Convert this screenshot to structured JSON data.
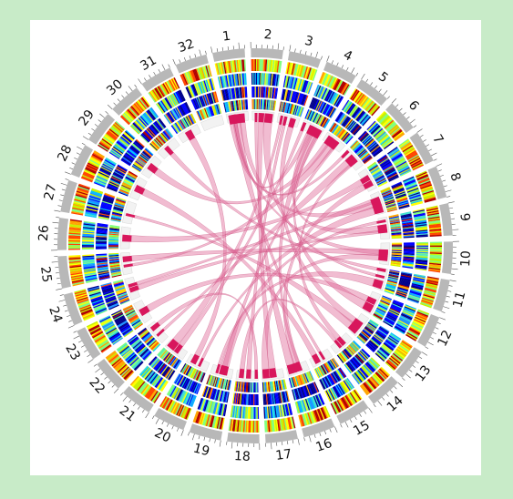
{
  "figure": {
    "background_color": "#c8ebc8",
    "panel_color": "#ffffff",
    "link_color": "#e06a98",
    "link_strong_color": "#d8175c",
    "track_palette": [
      "#00008b",
      "#0000ff",
      "#1e90ff",
      "#00bfff",
      "#40e0d0",
      "#7fff7f",
      "#c8f000",
      "#ffff00",
      "#ffa500",
      "#ff4500",
      "#b00000"
    ]
  },
  "chromosomes": [
    "1",
    "2",
    "3",
    "4",
    "5",
    "6",
    "7",
    "8",
    "9",
    "10",
    "11",
    "12",
    "13",
    "14",
    "15",
    "16",
    "17",
    "18",
    "19",
    "20",
    "21",
    "22",
    "23",
    "24",
    "25",
    "26",
    "27",
    "28",
    "29",
    "30",
    "31",
    "32"
  ],
  "links": [
    {
      "from": "1",
      "to": "10"
    },
    {
      "from": "1",
      "to": "8"
    },
    {
      "from": "1",
      "to": "15"
    },
    {
      "from": "1",
      "to": "4"
    },
    {
      "from": "2",
      "to": "17"
    },
    {
      "from": "2",
      "to": "11"
    },
    {
      "from": "3",
      "to": "18"
    },
    {
      "from": "3",
      "to": "13"
    },
    {
      "from": "4",
      "to": "16"
    },
    {
      "from": "4",
      "to": "21"
    },
    {
      "from": "4",
      "to": "9"
    },
    {
      "from": "5",
      "to": "25"
    },
    {
      "from": "5",
      "to": "19"
    },
    {
      "from": "5",
      "to": "29"
    },
    {
      "from": "6",
      "to": "22"
    },
    {
      "from": "6",
      "to": "14"
    },
    {
      "from": "7",
      "to": "26"
    },
    {
      "from": "8",
      "to": "20"
    },
    {
      "from": "9",
      "to": "24"
    },
    {
      "from": "10",
      "to": "17"
    },
    {
      "from": "11",
      "to": "19"
    },
    {
      "from": "11",
      "to": "30"
    },
    {
      "from": "12",
      "to": "23"
    },
    {
      "from": "13",
      "to": "27"
    },
    {
      "from": "14",
      "to": "18"
    },
    {
      "from": "15",
      "to": "28"
    },
    {
      "from": "16",
      "to": "2"
    },
    {
      "from": "18",
      "to": "22"
    },
    {
      "from": "20",
      "to": "31"
    },
    {
      "from": "21",
      "to": "3"
    },
    {
      "from": "24",
      "to": "8"
    },
    {
      "from": "25",
      "to": "10"
    },
    {
      "from": "12",
      "to": "4"
    },
    {
      "from": "6",
      "to": "1"
    },
    {
      "from": "7",
      "to": "16"
    },
    {
      "from": "19",
      "to": "9"
    }
  ]
}
